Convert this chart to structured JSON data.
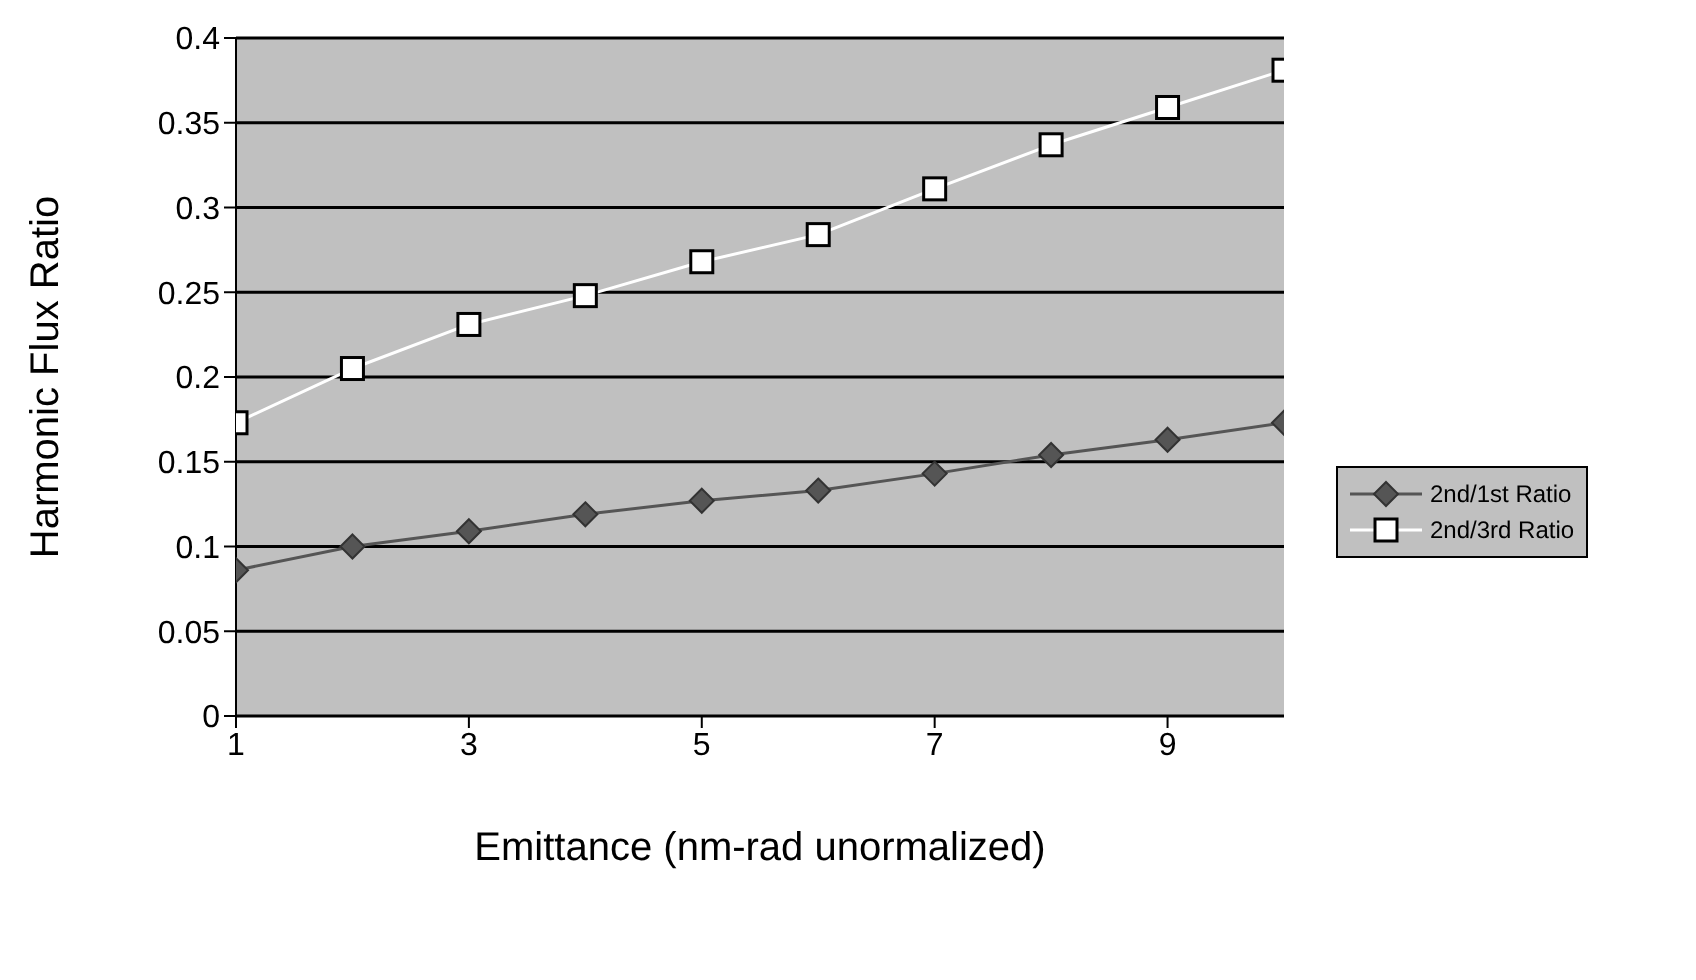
{
  "chart_data": {
    "type": "line",
    "xlabel": "Emittance (nm-rad unormalized)",
    "ylabel": "Harmonic Flux Ratio",
    "x": [
      1,
      2,
      3,
      4,
      5,
      6,
      7,
      8,
      9,
      10
    ],
    "xlim": [
      1,
      10
    ],
    "xticks": [
      1,
      3,
      5,
      7,
      9
    ],
    "ylim": [
      0,
      0.4
    ],
    "yticks": [
      0,
      0.05,
      0.1,
      0.15,
      0.2,
      0.25,
      0.3,
      0.35,
      0.4
    ],
    "grid": "y",
    "legend": "right",
    "series": [
      {
        "name": "2nd/1st Ratio",
        "color": "#555555",
        "marker": "diamond",
        "values": [
          0.086,
          0.1,
          0.109,
          0.119,
          0.127,
          0.133,
          0.143,
          0.154,
          0.163,
          0.173
        ]
      },
      {
        "name": "2nd/3rd Ratio",
        "color": "#ffffff",
        "marker": "square",
        "values": [
          0.173,
          0.205,
          0.231,
          0.248,
          0.268,
          0.284,
          0.311,
          0.337,
          0.359,
          0.381
        ]
      }
    ]
  }
}
